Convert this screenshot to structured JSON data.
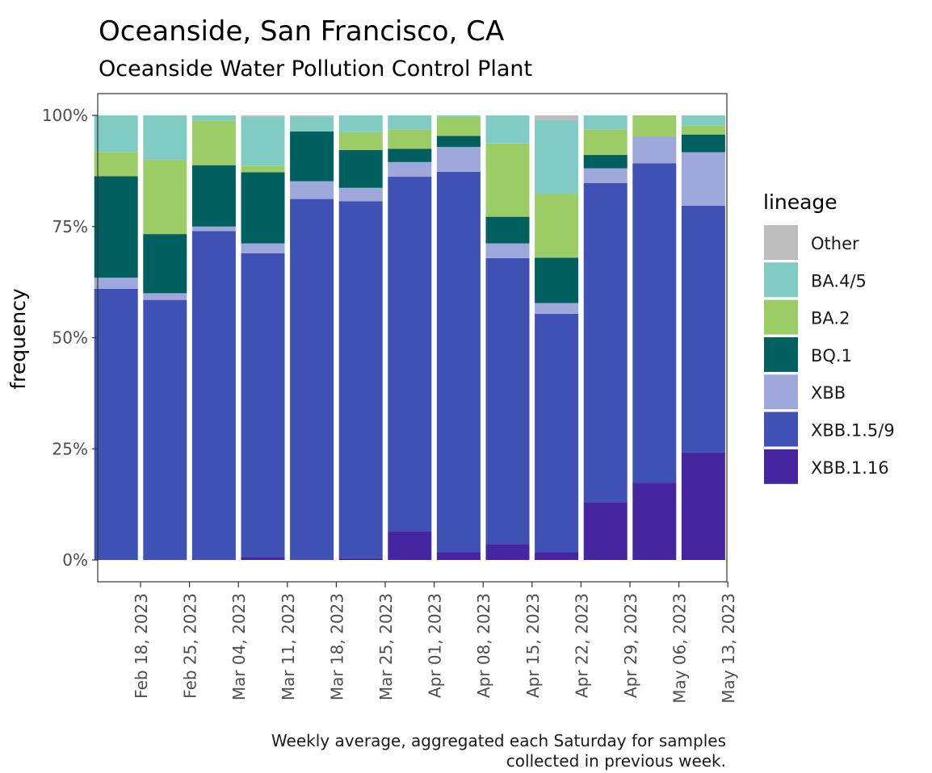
{
  "chart_data": {
    "type": "bar",
    "stacked": true,
    "title": "Oceanside, San Francisco, CA",
    "subtitle": "Oceanside Water Pollution Control Plant",
    "xlabel": "",
    "ylabel": "frequency",
    "ylim": [
      0,
      1
    ],
    "y_ticks": [
      {
        "value": 0,
        "label": "0%"
      },
      {
        "value": 0.25,
        "label": "25%"
      },
      {
        "value": 0.5,
        "label": "50%"
      },
      {
        "value": 0.75,
        "label": "75%"
      },
      {
        "value": 1,
        "label": "100%"
      }
    ],
    "x_tick_labels": [
      "Feb 18, 2023",
      "Feb 25, 2023",
      "Mar 04, 2023",
      "Mar 11, 2023",
      "Mar 18, 2023",
      "Mar 25, 2023",
      "Apr 01, 2023",
      "Apr 08, 2023",
      "Apr 15, 2023",
      "Apr 22, 2023",
      "Apr 29, 2023",
      "May 06, 2023",
      "May 13, 2023"
    ],
    "bar_week_offset": -0.5,
    "grid": false,
    "legend": {
      "title": "lineage",
      "placement": "right"
    },
    "caption": [
      "Weekly average, aggregated each Saturday for samples",
      "collected in previous week."
    ],
    "series": [
      {
        "name": "XBB.1.16",
        "color": "#4525A0",
        "values": [
          0.0,
          0.0,
          0.0,
          0.007,
          0.0,
          0.004,
          0.065,
          0.018,
          0.036,
          0.018,
          0.13,
          0.174,
          0.242
        ]
      },
      {
        "name": "XBB.1.5/9",
        "color": "#3F51B5",
        "values": [
          0.61,
          0.585,
          0.74,
          0.683,
          0.812,
          0.803,
          0.797,
          0.855,
          0.643,
          0.536,
          0.718,
          0.718,
          0.555
        ]
      },
      {
        "name": "XBB",
        "color": "#9FA8DA",
        "values": [
          0.025,
          0.015,
          0.01,
          0.022,
          0.04,
          0.03,
          0.033,
          0.056,
          0.033,
          0.024,
          0.033,
          0.06,
          0.12
        ]
      },
      {
        "name": "BQ.1",
        "color": "#005F5F",
        "values": [
          0.228,
          0.133,
          0.138,
          0.16,
          0.112,
          0.085,
          0.03,
          0.025,
          0.06,
          0.102,
          0.03,
          0.0,
          0.04
        ]
      },
      {
        "name": "BA.2",
        "color": "#9CCC65",
        "values": [
          0.055,
          0.167,
          0.1,
          0.015,
          0.0,
          0.04,
          0.043,
          0.043,
          0.165,
          0.143,
          0.057,
          0.048,
          0.02
        ]
      },
      {
        "name": "BA.4/5",
        "color": "#80CBC4",
        "values": [
          0.082,
          0.1,
          0.012,
          0.11,
          0.034,
          0.038,
          0.032,
          0.003,
          0.063,
          0.166,
          0.032,
          0.0,
          0.023
        ]
      },
      {
        "name": "Other",
        "color": "#BDBDBD",
        "values": [
          0.0,
          0.0,
          0.0,
          0.003,
          0.002,
          0.0,
          0.0,
          0.0,
          0.0,
          0.011,
          0.0,
          0.0,
          0.0
        ]
      }
    ],
    "legend_order": [
      "Other",
      "BA.4/5",
      "BA.2",
      "BQ.1",
      "XBB",
      "XBB.1.5/9",
      "XBB.1.16"
    ]
  }
}
